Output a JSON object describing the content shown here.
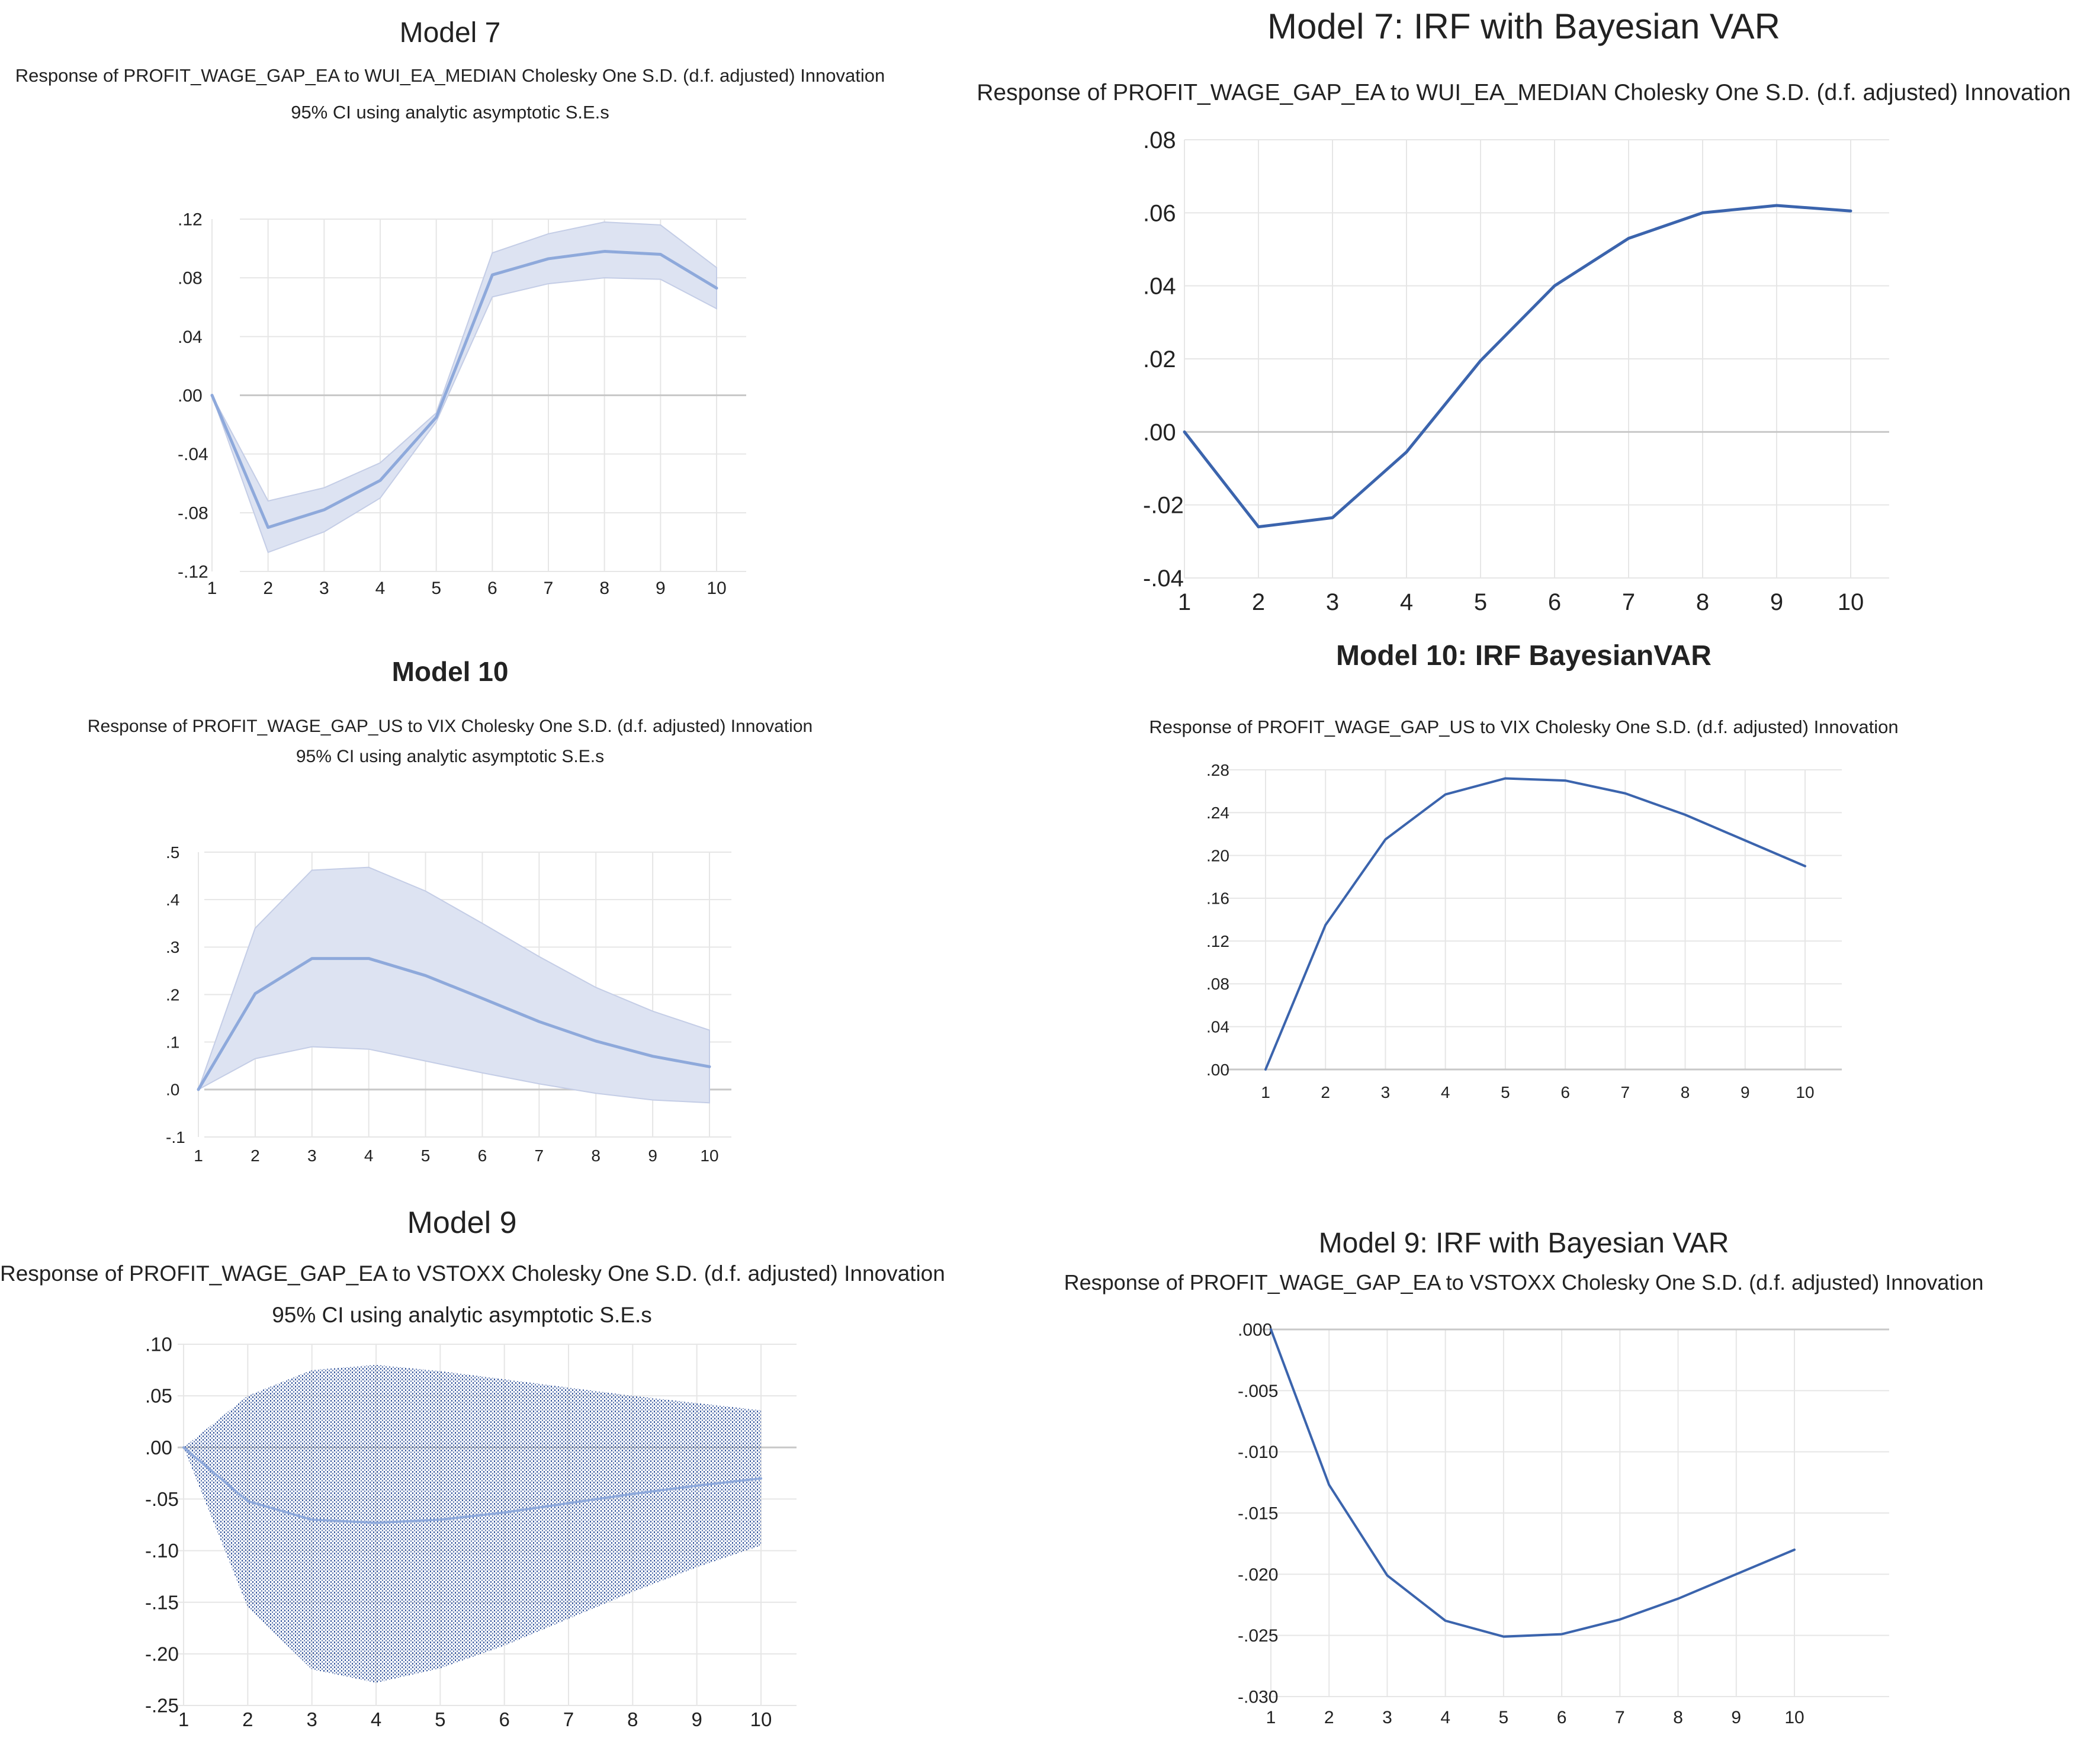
{
  "colors": {
    "ci_fill": "#dde3f2",
    "ci_line": "#c4cde6",
    "line_light": "#8ea9db",
    "line_dark": "#3b64ad",
    "grid": "#e6e6e6",
    "zero": "#c8c8c8",
    "dots": "#3b5ba0"
  },
  "chart_data": [
    {
      "type": "line",
      "title": "Model 7",
      "subtitle": "Response of PROFIT_WAGE_GAP_EA to WUI_EA_MEDIAN Cholesky One S.D. (d.f. adjusted) Innovation",
      "note": "95% CI using analytic asymptotic S.E.s",
      "categories": [
        "1",
        "2",
        "3",
        "4",
        "5",
        "6",
        "7",
        "8",
        "9",
        "10"
      ],
      "series": [
        {
          "name": "Response",
          "values": [
            0.0,
            -0.09,
            -0.078,
            -0.058,
            -0.015,
            0.082,
            0.093,
            0.098,
            0.096,
            0.073
          ]
        },
        {
          "name": "Upper 95% CI",
          "values": [
            0.0,
            -0.072,
            -0.063,
            -0.046,
            -0.012,
            0.097,
            0.11,
            0.118,
            0.116,
            0.087
          ]
        },
        {
          "name": "Lower 95% CI",
          "values": [
            0.0,
            -0.107,
            -0.093,
            -0.07,
            -0.018,
            0.067,
            0.076,
            0.08,
            0.079,
            0.059
          ]
        }
      ],
      "ylim": [
        -0.12,
        0.12
      ],
      "yticks": [
        ".12",
        ".08",
        ".04",
        ".00",
        "-.04",
        "-.08",
        "-.12"
      ],
      "grid": true
    },
    {
      "type": "line",
      "title": "Model 7: IRF with Bayesian VAR",
      "subtitle": "Response of PROFIT_WAGE_GAP_EA to WUI_EA_MEDIAN Cholesky One S.D. (d.f. adjusted) Innovation",
      "categories": [
        "1",
        "2",
        "3",
        "4",
        "5",
        "6",
        "7",
        "8",
        "9",
        "10"
      ],
      "series": [
        {
          "name": "Response",
          "values": [
            0.0,
            -0.026,
            -0.0235,
            -0.0055,
            0.0195,
            0.04,
            0.053,
            0.06,
            0.062,
            0.0605
          ]
        }
      ],
      "ylim": [
        -0.04,
        0.08
      ],
      "yticks": [
        ".08",
        ".06",
        ".04",
        ".02",
        ".00",
        "-.02",
        "-.04"
      ],
      "grid": true
    },
    {
      "type": "line",
      "title": "Model 10",
      "subtitle": "Response of PROFIT_WAGE_GAP_US to VIX Cholesky One S.D. (d.f. adjusted) Innovation",
      "note": "95% CI using analytic asymptotic S.E.s",
      "categories": [
        "1",
        "2",
        "3",
        "4",
        "5",
        "6",
        "7",
        "8",
        "9",
        "10"
      ],
      "series": [
        {
          "name": "Response",
          "values": [
            0.0,
            0.202,
            0.276,
            0.276,
            0.24,
            0.192,
            0.143,
            0.102,
            0.07,
            0.048
          ]
        },
        {
          "name": "Upper 95% CI",
          "values": [
            0.0,
            0.34,
            0.462,
            0.468,
            0.418,
            0.35,
            0.28,
            0.215,
            0.165,
            0.125
          ]
        },
        {
          "name": "Lower 95% CI",
          "values": [
            0.0,
            0.065,
            0.09,
            0.085,
            0.06,
            0.035,
            0.012,
            -0.008,
            -0.022,
            -0.028
          ]
        }
      ],
      "ylim": [
        -0.1,
        0.5
      ],
      "yticks": [
        ".5",
        ".4",
        ".3",
        ".2",
        ".1",
        ".0",
        "-.1"
      ],
      "grid": true
    },
    {
      "type": "line",
      "title": "Model 10: IRF BayesianVAR",
      "subtitle": "Response of PROFIT_WAGE_GAP_US to VIX Cholesky One S.D. (d.f. adjusted) Innovation",
      "categories": [
        "1",
        "2",
        "3",
        "4",
        "5",
        "6",
        "7",
        "8",
        "9",
        "10"
      ],
      "series": [
        {
          "name": "Response",
          "values": [
            0.0,
            0.135,
            0.215,
            0.257,
            0.272,
            0.27,
            0.258,
            0.238,
            0.214,
            0.19
          ]
        }
      ],
      "ylim": [
        0.0,
        0.28
      ],
      "yticks": [
        ".28",
        ".24",
        ".20",
        ".16",
        ".12",
        ".08",
        ".04",
        ".00"
      ],
      "grid": true
    },
    {
      "type": "line",
      "title": "Model 9",
      "subtitle": "Response of PROFIT_WAGE_GAP_EA to VSTOXX Cholesky One S.D. (d.f. adjusted) Innovation",
      "note": "95% CI using analytic asymptotic S.E.s",
      "categories": [
        "1",
        "2",
        "3",
        "4",
        "5",
        "6",
        "7",
        "8",
        "9",
        "10"
      ],
      "series": [
        {
          "name": "Response",
          "values": [
            0.0,
            -0.052,
            -0.07,
            -0.073,
            -0.07,
            -0.063,
            -0.054,
            -0.045,
            -0.037,
            -0.03
          ]
        },
        {
          "name": "Upper 95% CI",
          "values": [
            0.0,
            0.05,
            0.075,
            0.08,
            0.074,
            0.066,
            0.058,
            0.05,
            0.043,
            0.036
          ]
        },
        {
          "name": "Lower 95% CI",
          "values": [
            0.0,
            -0.155,
            -0.215,
            -0.228,
            -0.214,
            -0.192,
            -0.166,
            -0.14,
            -0.116,
            -0.095
          ]
        }
      ],
      "ylim": [
        -0.25,
        0.1
      ],
      "yticks": [
        ".10",
        ".05",
        ".00",
        "-.05",
        "-.10",
        "-.15",
        "-.20",
        "-.25"
      ],
      "grid": true
    },
    {
      "type": "line",
      "title": "Model 9: IRF with Bayesian VAR",
      "subtitle": "Response of PROFIT_WAGE_GAP_EA to VSTOXX Cholesky One S.D. (d.f. adjusted) Innovation",
      "categories": [
        "1",
        "2",
        "3",
        "4",
        "5",
        "6",
        "7",
        "8",
        "9",
        "10"
      ],
      "series": [
        {
          "name": "Response",
          "values": [
            0.0,
            -0.0127,
            -0.0201,
            -0.0238,
            -0.0251,
            -0.0249,
            -0.0237,
            -0.022,
            -0.02,
            -0.018
          ]
        }
      ],
      "ylim": [
        -0.03,
        0.0
      ],
      "yticks": [
        ".000",
        "-.005",
        "-.010",
        "-.015",
        "-.020",
        "-.025",
        "-.030"
      ],
      "grid": true
    }
  ]
}
